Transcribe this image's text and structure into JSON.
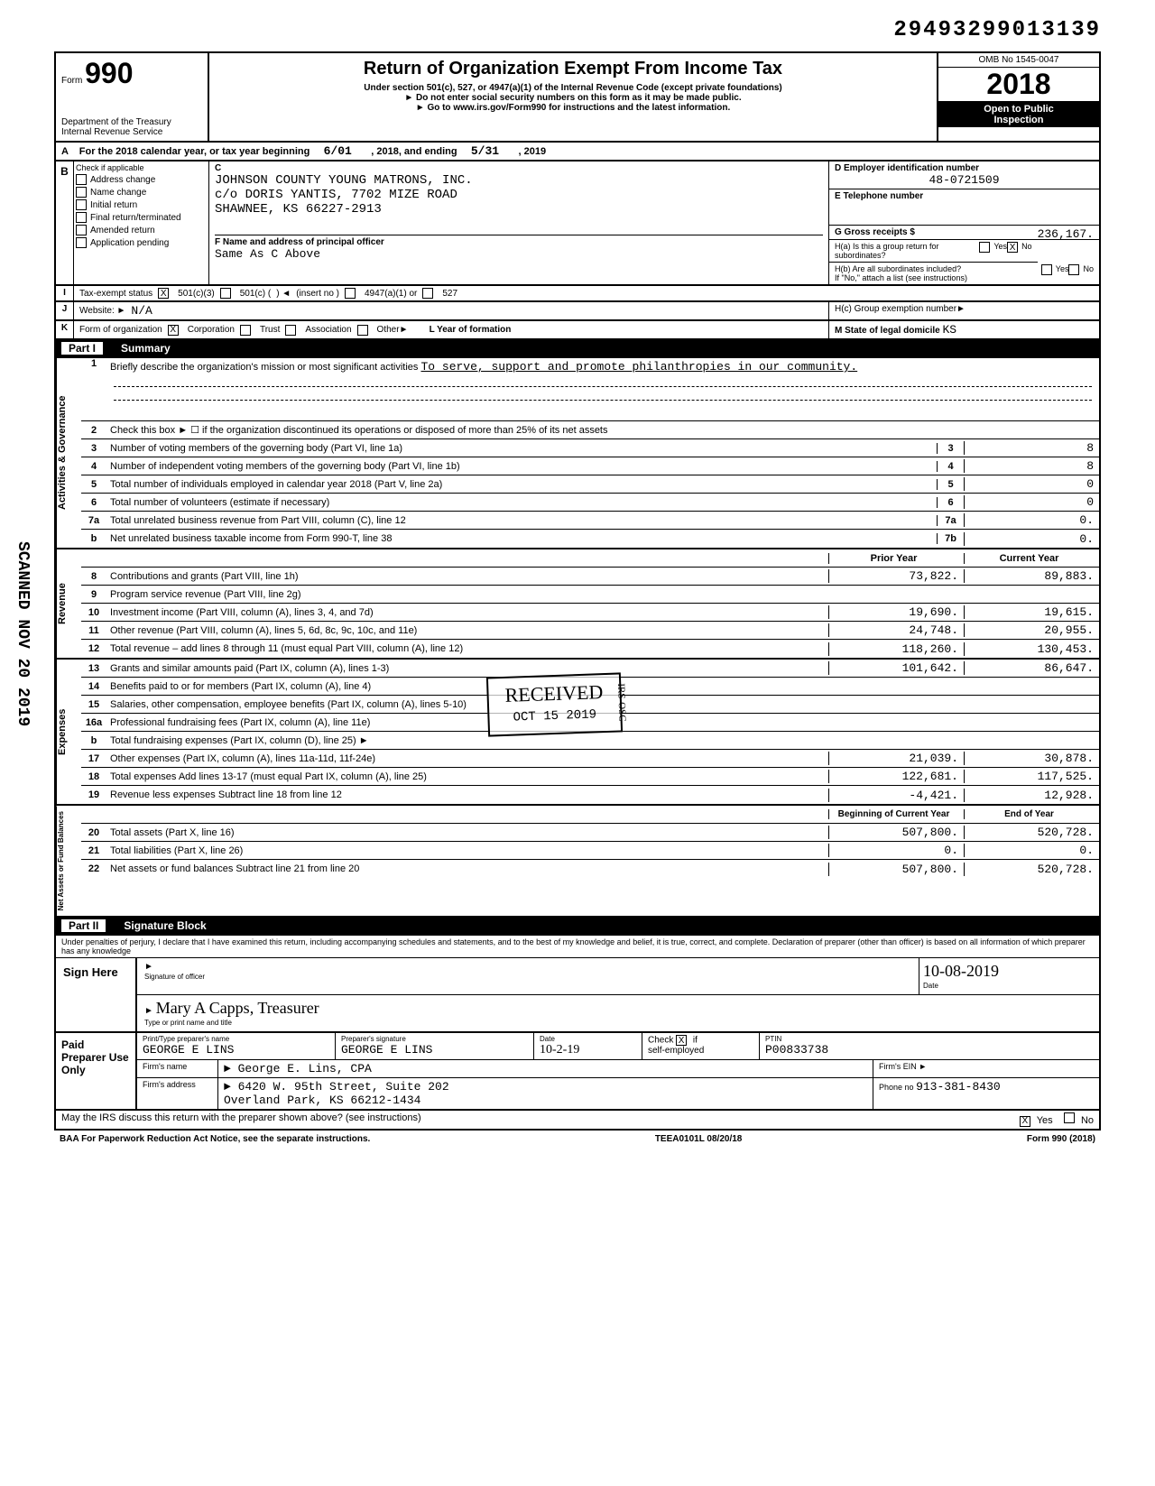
{
  "topId": "29493299013139",
  "formNum": "990",
  "formPrefix": "Form",
  "title": "Return of Organization Exempt From Income Tax",
  "subtitle": "Under section 501(c), 527, or 4947(a)(1) of the Internal Revenue Code (except private foundations)",
  "note1": "► Do not enter social security numbers on this form as it may be made public.",
  "note2": "► Go to www.irs.gov/Form990 for instructions and the latest information.",
  "dept": "Department of the Treasury",
  "irs": "Internal Revenue Service",
  "omb": "OMB No 1545-0047",
  "year": "2018",
  "openPublic": "Open to Public",
  "inspection": "Inspection",
  "rowA": {
    "label": "A",
    "text": "For the 2018 calendar year, or tax year beginning",
    "begin": "6/01",
    "mid": ", 2018, and ending",
    "end": "5/31",
    "endYear": ", 2019"
  },
  "sectionB": {
    "label": "B",
    "checkLabel": "Check if applicable",
    "c": "C",
    "checks": [
      "Address change",
      "Name change",
      "Initial return",
      "Final return/terminated",
      "Amended return",
      "Application pending"
    ],
    "orgName": "JOHNSON COUNTY YOUNG MATRONS, INC.",
    "orgAddr1": "c/o DORIS YANTIS, 7702 MIZE ROAD",
    "orgAddr2": "SHAWNEE, KS 66227-2913",
    "f": "F  Name and address of principal officer",
    "sameAs": "Same As C Above",
    "d": "D  Employer identification number",
    "ein": "48-0721509",
    "e": "E  Telephone number",
    "g": "G  Gross receipts $",
    "gVal": "236,167.",
    "ha": "H(a) Is this a group return for subordinates?",
    "hb": "H(b) Are all subordinates included?",
    "hbNote": "If \"No,\" attach a list (see instructions)",
    "yes": "Yes",
    "no": "No"
  },
  "rowI": {
    "label": "I",
    "text": "Tax-exempt status",
    "opt1": "501(c)(3)",
    "opt2": "501(c)  (",
    "insert": "(insert no )",
    "opt3": "4947(a)(1) or",
    "opt4": "527"
  },
  "rowJ": {
    "label": "J",
    "text": "Website: ►",
    "val": "N/A",
    "hc": "H(c) Group exemption number►"
  },
  "rowK": {
    "label": "K",
    "text": "Form of organization",
    "opts": [
      "Corporation",
      "Trust",
      "Association",
      "Other►"
    ],
    "l": "L Year of formation",
    "m": "M State of legal domicile",
    "mVal": "KS"
  },
  "partI": {
    "label": "Part I",
    "title": "Summary"
  },
  "mission": {
    "num": "1",
    "text": "Briefly describe the organization's mission or most significant activities",
    "val": "To serve, support and promote philanthropies in our community."
  },
  "govRows": [
    {
      "num": "2",
      "text": "Check this box ►  ☐  if the organization discontinued its operations or disposed of more than 25% of its net assets"
    },
    {
      "num": "3",
      "text": "Number of voting members of the governing body (Part VI, line 1a)",
      "col": "3",
      "val": "8"
    },
    {
      "num": "4",
      "text": "Number of independent voting members of the governing body (Part VI, line 1b)",
      "col": "4",
      "val": "8"
    },
    {
      "num": "5",
      "text": "Total number of individuals employed in calendar year 2018 (Part V, line 2a)",
      "col": "5",
      "val": "0"
    },
    {
      "num": "6",
      "text": "Total number of volunteers (estimate if necessary)",
      "col": "6",
      "val": "0"
    },
    {
      "num": "7a",
      "text": "Total unrelated business revenue from Part VIII, column (C), line 12",
      "col": "7a",
      "val": "0."
    },
    {
      "num": "b",
      "text": "Net unrelated business taxable income from Form 990-T, line 38",
      "col": "7b",
      "val": "0."
    }
  ],
  "revHeader": {
    "prior": "Prior Year",
    "curr": "Current Year"
  },
  "revRows": [
    {
      "num": "8",
      "text": "Contributions and grants (Part VIII, line 1h)",
      "prior": "73,822.",
      "curr": "89,883."
    },
    {
      "num": "9",
      "text": "Program service revenue (Part VIII, line 2g)",
      "prior": "",
      "curr": ""
    },
    {
      "num": "10",
      "text": "Investment income (Part VIII, column (A), lines 3, 4, and 7d)",
      "prior": "19,690.",
      "curr": "19,615."
    },
    {
      "num": "11",
      "text": "Other revenue (Part VIII, column (A), lines 5, 6d, 8c, 9c, 10c, and 11e)",
      "prior": "24,748.",
      "curr": "20,955."
    },
    {
      "num": "12",
      "text": "Total revenue – add lines 8 through 11 (must equal Part VIII, column (A), line 12)",
      "prior": "118,260.",
      "curr": "130,453."
    }
  ],
  "expRows": [
    {
      "num": "13",
      "text": "Grants and similar amounts paid (Part IX, column (A), lines 1-3)",
      "prior": "101,642.",
      "curr": "86,647."
    },
    {
      "num": "14",
      "text": "Benefits paid to or for members (Part IX, column (A), line 4)",
      "prior": "",
      "curr": ""
    },
    {
      "num": "15",
      "text": "Salaries, other compensation, employee benefits (Part IX, column (A), lines 5-10)",
      "prior": "",
      "curr": ""
    },
    {
      "num": "16a",
      "text": "Professional fundraising fees (Part IX, column (A), line 11e)",
      "prior": "",
      "curr": ""
    },
    {
      "num": "b",
      "text": "Total fundraising expenses (Part IX, column (D), line 25) ►",
      "shaded": true
    },
    {
      "num": "17",
      "text": "Other expenses (Part IX, column (A), lines 11a-11d, 11f-24e)",
      "prior": "21,039.",
      "curr": "30,878."
    },
    {
      "num": "18",
      "text": "Total expenses  Add lines 13-17 (must equal Part IX, column (A), line 25)",
      "prior": "122,681.",
      "curr": "117,525."
    },
    {
      "num": "19",
      "text": "Revenue less expenses Subtract line 18 from line 12",
      "prior": "-4,421.",
      "curr": "12,928."
    }
  ],
  "netHeader": {
    "prior": "Beginning of Current Year",
    "curr": "End of Year"
  },
  "netRows": [
    {
      "num": "20",
      "text": "Total assets (Part X, line 16)",
      "prior": "507,800.",
      "curr": "520,728."
    },
    {
      "num": "21",
      "text": "Total liabilities (Part X, line 26)",
      "prior": "0.",
      "curr": "0."
    },
    {
      "num": "22",
      "text": "Net assets or fund balances  Subtract line 21 from line 20",
      "prior": "507,800.",
      "curr": "520,728."
    }
  ],
  "partII": {
    "label": "Part II",
    "title": "Signature Block"
  },
  "sigDeclare": "Under penalties of perjury, I declare that I have examined this return, including accompanying schedules and statements, and to the best of my knowledge and belief, it is true, correct, and complete. Declaration of preparer (other than officer) is based on all information of which preparer has any knowledge",
  "signHere": "Sign Here",
  "sigOfficer": "Signature of officer",
  "sigDate": "10-08-2019",
  "sigDateLabel": "Date",
  "sigTypeName": "Mary A Capps, Treasurer",
  "sigTypeLabel": "Type or print name and title",
  "paidPrep": "Paid Preparer Use Only",
  "prepNameLabel": "Print/Type preparer's name",
  "prepName": "GEORGE E LINS",
  "prepSigLabel": "Preparer's signature",
  "prepSig": "GEORGE E LINS",
  "prepDateLabel": "Date",
  "prepDate": "10-2-19",
  "checkIf": "Check",
  "selfEmp": "self-employed",
  "ptinLabel": "PTIN",
  "ptin": "P00833738",
  "firmNameLabel": "Firm's name",
  "firmName": "► George E. Lins, CPA",
  "firmEinLabel": "Firm's EIN ►",
  "firmAddrLabel": "Firm's address",
  "firmAddr1": "► 6420 W. 95th Street, Suite 202",
  "firmAddr2": "Overland Park, KS 66212-1434",
  "phoneLabel": "Phone no",
  "phone": "913-381-8430",
  "discussText": "May the IRS discuss this return with the preparer shown above? (see instructions)",
  "baaText": "BAA  For Paperwork Reduction Act Notice, see the separate instructions.",
  "teea": "TEEA0101L 08/20/18",
  "formFooter": "Form 990 (2018)",
  "scanned": "SCANNED NOV 20 2019",
  "received": "RECEIVED",
  "receivedDate": "OCT 15 2019",
  "receivedSrc": "IRS-OSC",
  "vertLabels": {
    "gov": "Activities & Governance",
    "rev": "Revenue",
    "exp": "Expenses",
    "net": "Net Assets or Fund Balances"
  }
}
